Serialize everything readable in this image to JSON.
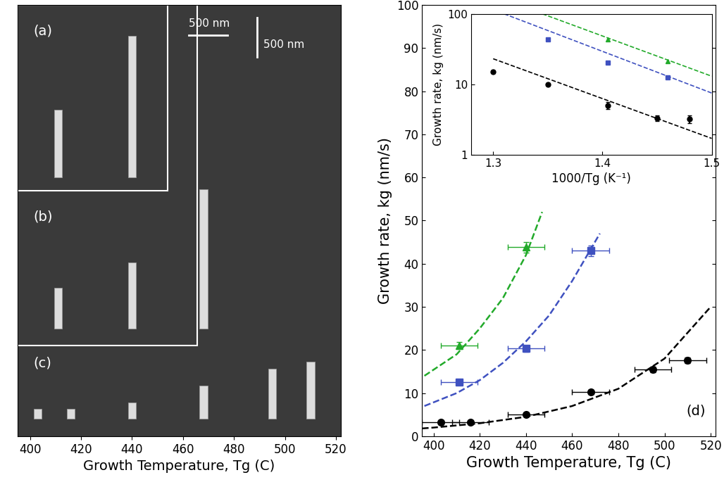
{
  "chart_data": [
    {
      "type": "image",
      "panel_labels": [
        "(a)",
        "(b)",
        "(c)"
      ],
      "scale_bar_labels": [
        "500 nm",
        "500 nm"
      ],
      "x_label": "Growth Temperature, Tg (C)",
      "xlim": [
        395,
        522
      ],
      "xticks": [
        400,
        420,
        440,
        460,
        480,
        500,
        520
      ],
      "tick_labels": "x"
    },
    {
      "type": "scatter",
      "panel_label": "(d)",
      "x_label": "Growth Temperature, Tg (C)",
      "y_label": "Growth rate, kg (nm/s)",
      "xlim": [
        395,
        522
      ],
      "ylim": [
        0,
        100
      ],
      "xticks": [
        400,
        420,
        440,
        460,
        480,
        500,
        520
      ],
      "yticks": [
        0,
        10,
        20,
        30,
        40,
        50,
        60,
        70,
        80,
        90,
        100
      ],
      "series": [
        {
          "type": "scatter",
          "color": "#000000",
          "marker": "circle",
          "x": [
            403,
            416,
            440,
            468,
            495,
            510
          ],
          "values": [
            3.2,
            3.2,
            5.0,
            10.2,
            15.5,
            17.6
          ],
          "xerr": [
            8,
            8,
            8,
            8,
            8,
            8
          ],
          "yerr": [
            0.4,
            0.4,
            0.5,
            0.5,
            0.6,
            0.6
          ]
        },
        {
          "type": "scatter",
          "color": "#3f51c0",
          "marker": "square",
          "x": [
            411,
            440,
            468
          ],
          "values": [
            12.5,
            20.3,
            43.0
          ],
          "xerr": [
            8,
            8,
            8
          ],
          "yerr": [
            0.6,
            0.8,
            1.2
          ]
        },
        {
          "type": "scatter",
          "color": "#22aa2a",
          "marker": "triangle",
          "x": [
            411,
            440
          ],
          "values": [
            21.0,
            43.8
          ],
          "xerr": [
            8,
            8
          ],
          "yerr": [
            0.8,
            1.2
          ]
        },
        {
          "type": "line",
          "color": "#000000",
          "line_style": "dashed",
          "x": [
            395,
            400,
            420,
            440,
            460,
            480,
            500,
            520
          ],
          "values": [
            1.8,
            2.0,
            3.0,
            4.5,
            7.0,
            11.0,
            18.0,
            30.0
          ]
        },
        {
          "type": "line",
          "color": "#3f51c0",
          "line_style": "dashed",
          "x": [
            396,
            410,
            420,
            430,
            440,
            450,
            460,
            472
          ],
          "values": [
            7.0,
            10.0,
            13.0,
            17.0,
            22.0,
            28.0,
            36.0,
            47.0
          ]
        },
        {
          "type": "line",
          "color": "#22aa2a",
          "line_style": "dashed",
          "x": [
            396,
            410,
            420,
            430,
            440,
            447
          ],
          "values": [
            14.0,
            19.0,
            25.0,
            32.0,
            42.0,
            52.0
          ]
        }
      ]
    },
    {
      "type": "scatter",
      "log": "y",
      "x_label": "1000/Tg (K⁻¹)",
      "y_label": "Growth rate, kg (nm/s)",
      "xlim": [
        1.28,
        1.5
      ],
      "ylim": [
        1,
        100
      ],
      "xticks": [
        1.3,
        1.4,
        1.5
      ],
      "yticks": [
        1,
        10,
        100
      ],
      "series": [
        {
          "type": "scatter",
          "color": "#000000",
          "marker": "circle",
          "x": [
            1.3,
            1.35,
            1.405,
            1.45,
            1.48
          ],
          "values": [
            15.0,
            10.0,
            5.0,
            3.3,
            3.2
          ],
          "yerr": [
            0.6,
            0.5,
            0.6,
            0.3,
            0.4
          ]
        },
        {
          "type": "scatter",
          "color": "#3f51c0",
          "marker": "square",
          "x": [
            1.35,
            1.405,
            1.46
          ],
          "values": [
            43.0,
            20.5,
            12.5
          ]
        },
        {
          "type": "scatter",
          "color": "#22aa2a",
          "marker": "triangle",
          "x": [
            1.405,
            1.46
          ],
          "values": [
            43.5,
            21.0
          ]
        },
        {
          "type": "line",
          "color": "#000000",
          "line_style": "dashed",
          "x": [
            1.3,
            1.5
          ],
          "values": [
            23.0,
            1.7
          ]
        },
        {
          "type": "line",
          "color": "#3f51c0",
          "line_style": "dashed",
          "x": [
            1.31,
            1.5
          ],
          "values": [
            100.0,
            7.5
          ]
        },
        {
          "type": "line",
          "color": "#22aa2a",
          "line_style": "dashed",
          "x": [
            1.345,
            1.5
          ],
          "values": [
            100.0,
            13.0
          ]
        }
      ]
    }
  ]
}
